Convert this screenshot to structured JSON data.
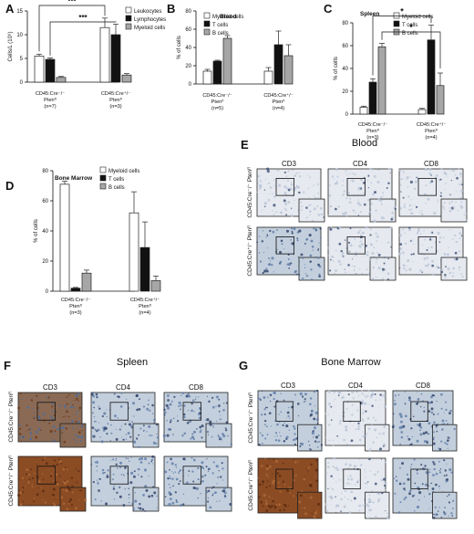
{
  "panels": {
    "A": {
      "letter": "A"
    },
    "B": {
      "letter": "B",
      "subtitle": "Blood"
    },
    "C": {
      "letter": "C",
      "subtitle": "Spleen"
    },
    "D": {
      "letter": "D",
      "subtitle": "Bone Marrow"
    },
    "E": {
      "letter": "E",
      "title": "Blood",
      "columns": [
        "CD3",
        "CD4",
        "CD8"
      ],
      "rows": [
        "CD45:Cre⁻/⁻ Ptenᶠˡ",
        "CD45:Cre⁺/⁻ Ptenᶠˡ"
      ]
    },
    "F": {
      "letter": "F",
      "title": "Spleen",
      "columns": [
        "CD3",
        "CD4",
        "CD8"
      ],
      "rows": [
        "CD45:Cre⁻/⁻ Ptenᶠˡ",
        "CD45:Cre⁺/⁻ Ptenᶠˡ"
      ]
    },
    "G": {
      "letter": "G",
      "title": "Bone Marrow",
      "columns": [
        "CD3",
        "CD4",
        "CD8"
      ],
      "rows": [
        "CD45:Cre⁻/⁻ Ptenᶠˡ",
        "CD45:Cre⁺/⁻ Ptenᶠˡ"
      ]
    }
  },
  "colors": {
    "white_bar": "#ffffff",
    "black_bar": "#111111",
    "grey_bar": "#a6a6a6",
    "ihc_blue": "#b9c7d8",
    "ihc_brown": "#8a4a22"
  },
  "chart_data": [
    {
      "id": "A",
      "type": "bar",
      "ylabel": "Cells/L (10⁹)",
      "ylim": [
        0,
        15
      ],
      "yticks": [
        0,
        5,
        10,
        15
      ],
      "categories": [
        "CD45:Cre⁻/⁻\nPtenᶠˡ\n(n=7)",
        "CD45:Cre⁺/⁻\nPtenᶠˡ\n(n=3)"
      ],
      "series": [
        {
          "name": "Leukocytes",
          "values": [
            5.5,
            11.5
          ],
          "errors": [
            0.4,
            2.0
          ]
        },
        {
          "name": "Lymphocytes",
          "values": [
            4.8,
            10.0
          ],
          "errors": [
            0.3,
            2.2
          ]
        },
        {
          "name": "Myeloid cells",
          "values": [
            1.0,
            1.5
          ],
          "errors": [
            0.2,
            0.3
          ]
        }
      ],
      "annotations": [
        "***",
        "***"
      ],
      "legend": "top-right"
    },
    {
      "id": "B",
      "type": "bar",
      "title": "Blood",
      "ylabel": "% of cells",
      "ylim": [
        0,
        80
      ],
      "yticks": [
        0,
        20,
        40,
        60,
        80
      ],
      "categories": [
        "CD45:Cre⁻/⁻\nPtenᶠˡ\n(n=5)",
        "CD45:Cre⁺/⁻\nPtenᶠˡ\n(n=4)"
      ],
      "series": [
        {
          "name": "Myeloid cells",
          "values": [
            14,
            14
          ],
          "errors": [
            2,
            4
          ]
        },
        {
          "name": "T cells",
          "values": [
            25,
            43
          ],
          "errors": [
            1,
            15
          ]
        },
        {
          "name": "B cells",
          "values": [
            50,
            31
          ],
          "errors": [
            3,
            12
          ]
        }
      ],
      "legend": "top-right"
    },
    {
      "id": "C",
      "type": "bar",
      "title": "Spleen",
      "ylabel": "% of cells",
      "ylim": [
        0,
        80
      ],
      "yticks": [
        0,
        20,
        40,
        60,
        80
      ],
      "categories": [
        "CD45:Cre⁻/⁻\nPtenᶠˡ\n(n=3)",
        "CD45:Cre⁺/⁻\nPtenᶠˡ\n(n=4)"
      ],
      "series": [
        {
          "name": "Myeloid cells",
          "values": [
            6,
            4
          ],
          "errors": [
            1,
            1
          ]
        },
        {
          "name": "T cells",
          "values": [
            28,
            65
          ],
          "errors": [
            3,
            13
          ]
        },
        {
          "name": "B cells",
          "values": [
            59,
            25
          ],
          "errors": [
            3,
            11
          ]
        }
      ],
      "annotations": [
        "*",
        "*"
      ],
      "legend": "top-right"
    },
    {
      "id": "D",
      "type": "bar",
      "title": "Bone Marrow",
      "ylabel": "% of cells",
      "ylim": [
        0,
        80
      ],
      "yticks": [
        0,
        20,
        40,
        60,
        80
      ],
      "categories": [
        "CD45:Cre⁻/⁻\nPtenᶠˡ\n(n=3)",
        "CD45:Cre⁺/⁻\nPtenᶠˡ\n(n=4)"
      ],
      "series": [
        {
          "name": "Myeloid cells",
          "values": [
            71,
            52
          ],
          "errors": [
            2,
            14
          ]
        },
        {
          "name": "T cells",
          "values": [
            2,
            29
          ],
          "errors": [
            0.5,
            17
          ]
        },
        {
          "name": "B cells",
          "values": [
            12,
            7
          ],
          "errors": [
            2,
            3
          ]
        }
      ],
      "legend": "top-right"
    }
  ]
}
